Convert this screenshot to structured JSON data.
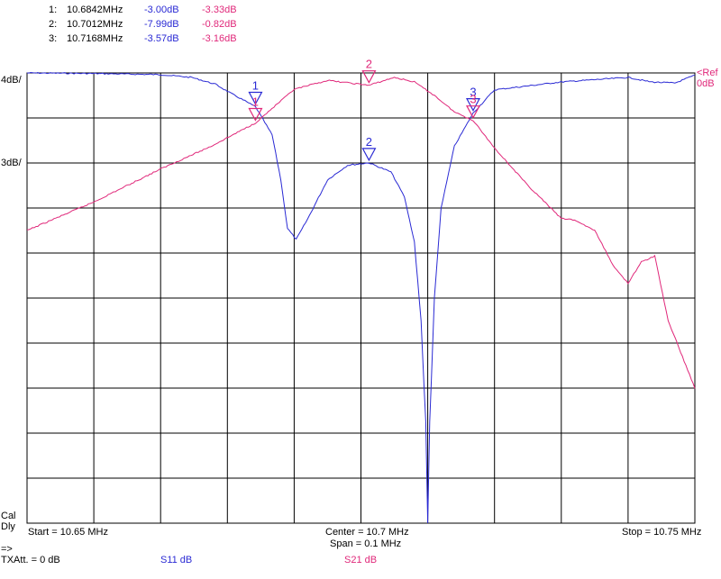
{
  "markers": [
    {
      "index": "1:",
      "freq": "10.6842MHz",
      "s11": "-3.00dB",
      "s21": "-3.33dB"
    },
    {
      "index": "2:",
      "freq": "10.7012MHz",
      "s11": "-7.99dB",
      "s21": "-0.82dB"
    },
    {
      "index": "3:",
      "freq": "10.7168MHz",
      "s11": "-3.57dB",
      "s21": "-3.16dB"
    }
  ],
  "left_scale": {
    "top": "4dB/",
    "second": "3dB/"
  },
  "right_scale": {
    "ref": "<Ref",
    "ref_value": "0dB"
  },
  "footer": {
    "start": "Start = 10.65 MHz",
    "center": "Center = 10.7 MHz",
    "span": "Span = 0.1 MHz",
    "stop": "Stop = 10.75 MHz",
    "cal": "Cal",
    "dly": "Dly",
    "arrow": "=>",
    "txatt": "TXAtt. = 0 dB",
    "s11_label": "S11  dB",
    "s21_label": "S21  dB"
  },
  "colors": {
    "s11": "#2a2ad4",
    "s21": "#e0287a",
    "grid": "#000000",
    "markers_text_s11": "#2a2ad4",
    "markers_text_s21": "#e0287a"
  },
  "chart_data": {
    "type": "line",
    "xlim": [
      10.65,
      10.75
    ],
    "x_unit": "MHz",
    "grid": true,
    "divisions": {
      "x": 10,
      "y": 10
    },
    "series": [
      {
        "name": "S11  dB",
        "scale_db_per_div": 4,
        "ref_db": 0,
        "x": [
          10.65,
          10.66,
          10.67,
          10.6747,
          10.6782,
          10.6805,
          10.6842,
          10.6867,
          10.688,
          10.689,
          10.6903,
          10.692,
          10.695,
          10.698,
          10.7012,
          10.7045,
          10.7065,
          10.708,
          10.709,
          10.7097,
          10.71,
          10.7103,
          10.711,
          10.712,
          10.714,
          10.7168,
          10.72,
          10.73,
          10.74,
          10.7434,
          10.747,
          10.75
        ],
        "y": [
          0.0,
          -0.05,
          -0.15,
          -0.4,
          -1.0,
          -1.8,
          -3.0,
          -5.5,
          -9.5,
          -13.8,
          -14.8,
          -13.0,
          -9.5,
          -8.2,
          -7.99,
          -8.8,
          -11.0,
          -15.0,
          -22.0,
          -31.0,
          -40.0,
          -31.0,
          -20.0,
          -12.0,
          -6.5,
          -3.57,
          -1.5,
          -0.8,
          -0.4,
          -0.8,
          -0.9,
          -0.2
        ]
      },
      {
        "name": "S21  dB",
        "scale_db_per_div": 3,
        "ref_db": 0,
        "x": [
          10.65,
          10.66,
          10.67,
          10.6775,
          10.6842,
          10.69,
          10.695,
          10.7012,
          10.705,
          10.708,
          10.711,
          10.714,
          10.7168,
          10.72,
          10.725,
          10.73,
          10.732,
          10.735,
          10.738,
          10.74,
          10.742,
          10.744,
          10.746,
          10.75
        ],
        "y": [
          -10.5,
          -8.6,
          -6.4,
          -4.9,
          -3.33,
          -1.1,
          -0.5,
          -0.82,
          -0.3,
          -0.6,
          -1.5,
          -2.6,
          -3.16,
          -5.0,
          -7.5,
          -9.7,
          -9.8,
          -10.5,
          -13.0,
          -14.0,
          -12.6,
          -12.2,
          -16.5,
          -21.0
        ]
      }
    ],
    "marker_points": [
      {
        "label": "1",
        "x": 10.6842,
        "s11": -3.0,
        "s21": -3.33
      },
      {
        "label": "2",
        "x": 10.7012,
        "s11": -7.99,
        "s21": -0.82
      },
      {
        "label": "3",
        "x": 10.7168,
        "s11": -3.57,
        "s21": -3.16
      }
    ]
  }
}
